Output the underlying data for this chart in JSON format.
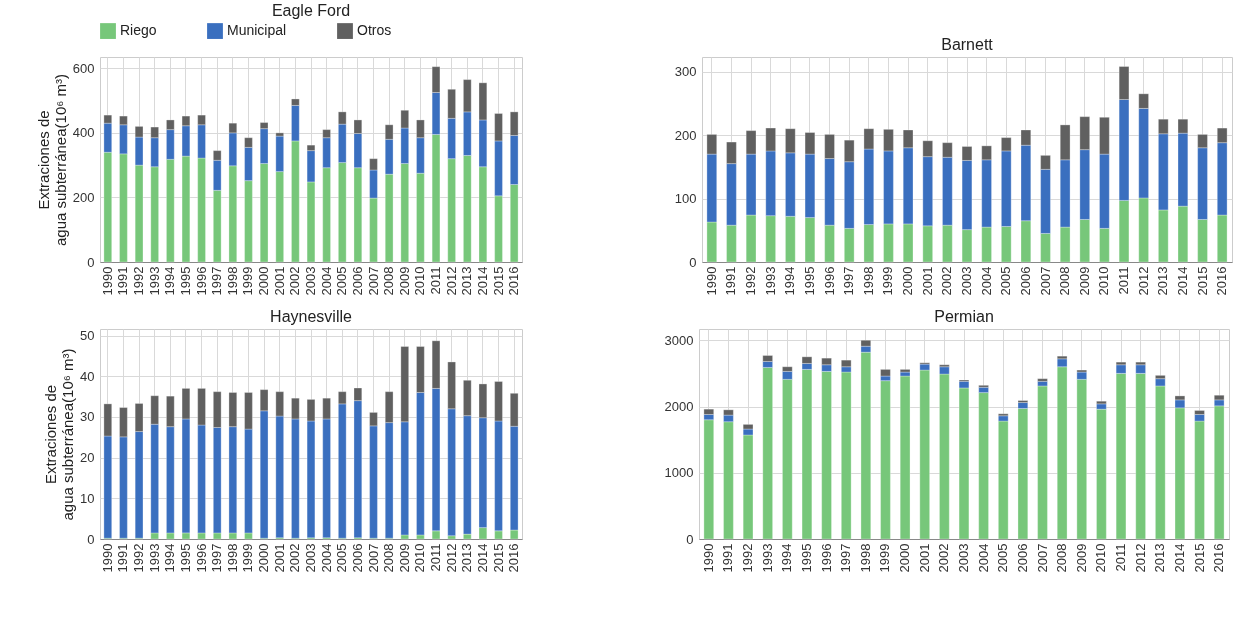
{
  "chart_data": [
    {
      "type": "bar",
      "title": "Eagle Ford",
      "ylabel": "Extraciones de\nagua subterránea(10⁶ m³)",
      "stacked": true,
      "grid": true,
      "legend": "top",
      "categories": [
        "1990",
        "1991",
        "1992",
        "1993",
        "1994",
        "1995",
        "1996",
        "1997",
        "1998",
        "1999",
        "2000",
        "2001",
        "2002",
        "2003",
        "2004",
        "2005",
        "2006",
        "2007",
        "2008",
        "2009",
        "2010",
        "2011",
        "2012",
        "2013",
        "2014",
        "2015",
        "2016"
      ],
      "ylim": [
        0,
        635
      ],
      "yticks": [
        0,
        200,
        400,
        600
      ],
      "series": [
        {
          "name": "Riego",
          "color": "#77c77a",
          "values": [
            340,
            335,
            300,
            295,
            318,
            328,
            322,
            222,
            298,
            252,
            305,
            280,
            375,
            248,
            292,
            308,
            292,
            198,
            272,
            305,
            275,
            395,
            320,
            330,
            295,
            205,
            240
          ]
        },
        {
          "name": "Municipal",
          "color": "#3a6fbf",
          "values": [
            90,
            90,
            87,
            90,
            92,
            94,
            103,
            93,
            102,
            103,
            108,
            110,
            110,
            97,
            93,
            119,
            106,
            87,
            108,
            110,
            110,
            130,
            125,
            135,
            145,
            170,
            152
          ]
        },
        {
          "name": "Otros",
          "color": "#606060",
          "values": [
            25,
            27,
            33,
            33,
            30,
            30,
            30,
            30,
            30,
            30,
            19,
            10,
            20,
            17,
            25,
            38,
            42,
            35,
            45,
            55,
            55,
            80,
            90,
            100,
            115,
            85,
            73
          ]
        }
      ]
    },
    {
      "type": "bar",
      "title": "Barnett",
      "stacked": true,
      "grid": true,
      "categories": [
        "1990",
        "1991",
        "1992",
        "1993",
        "1994",
        "1995",
        "1996",
        "1997",
        "1998",
        "1999",
        "2000",
        "2001",
        "2002",
        "2003",
        "2004",
        "2005",
        "2006",
        "2007",
        "2008",
        "2009",
        "2010",
        "2011",
        "2012",
        "2013",
        "2014",
        "2015",
        "2016"
      ],
      "ylim": [
        0,
        323
      ],
      "yticks": [
        0,
        100,
        200,
        300
      ],
      "series": [
        {
          "color": "#77c77a",
          "values": [
            63,
            58,
            74,
            73,
            72,
            70,
            58,
            53,
            59,
            60,
            60,
            57,
            58,
            51,
            55,
            56,
            65,
            45,
            55,
            67,
            53,
            97,
            101,
            82,
            88,
            67,
            74
          ]
        },
        {
          "color": "#3a6fbf",
          "values": [
            107,
            97,
            96,
            102,
            100,
            100,
            105,
            105,
            119,
            115,
            120,
            109,
            107,
            109,
            106,
            119,
            119,
            101,
            106,
            110,
            117,
            159,
            141,
            120,
            115,
            113,
            114
          ]
        },
        {
          "color": "#606060",
          "values": [
            31,
            34,
            37,
            36,
            38,
            34,
            38,
            34,
            32,
            34,
            28,
            25,
            23,
            22,
            22,
            21,
            24,
            22,
            55,
            52,
            58,
            52,
            23,
            23,
            22,
            21,
            23
          ]
        }
      ]
    },
    {
      "type": "bar",
      "title": "Haynesville",
      "ylabel": "Extraciones de\nagua subterránea(10⁶ m³)",
      "stacked": true,
      "grid": true,
      "categories": [
        "1990",
        "1991",
        "1992",
        "1993",
        "1994",
        "1995",
        "1996",
        "1997",
        "1998",
        "1999",
        "2000",
        "2001",
        "2002",
        "2003",
        "2004",
        "2005",
        "2006",
        "2007",
        "2008",
        "2009",
        "2010",
        "2011",
        "2012",
        "2013",
        "2014",
        "2015",
        "2016"
      ],
      "ylim": [
        0,
        51.6
      ],
      "yticks": [
        0,
        10,
        20,
        30,
        40,
        50
      ],
      "series": [
        {
          "color": "#77c77a",
          "values": [
            0.2,
            0.2,
            0.2,
            1.5,
            1.5,
            1.5,
            1.5,
            1.5,
            1.5,
            1.5,
            0.2,
            0.3,
            0.2,
            0.3,
            0.3,
            0.2,
            0.3,
            0.2,
            0.2,
            1,
            1,
            2,
            0.8,
            1.2,
            2.8,
            2,
            2.2
          ]
        },
        {
          "color": "#3a6fbf",
          "values": [
            25.1,
            24.9,
            26.2,
            26.7,
            26.1,
            28,
            26.5,
            25.9,
            26.1,
            25.5,
            31.3,
            29.9,
            29.3,
            28.7,
            29.2,
            33,
            33.7,
            27.6,
            28.4,
            27.8,
            35,
            35,
            31.2,
            29.1,
            27,
            27,
            25.5
          ]
        },
        {
          "color": "#606060",
          "values": [
            7.9,
            7.2,
            6.9,
            7,
            7.5,
            7.5,
            9,
            8.8,
            8.4,
            9,
            5.2,
            6,
            5.1,
            5.3,
            5.1,
            3,
            3.1,
            3.3,
            7.6,
            18.5,
            11.3,
            11.7,
            11.5,
            8.7,
            8.3,
            9.7,
            8.1
          ]
        }
      ]
    },
    {
      "type": "bar",
      "title": "Permian",
      "stacked": true,
      "grid": true,
      "categories": [
        "1990",
        "1991",
        "1992",
        "1993",
        "1994",
        "1995",
        "1996",
        "1997",
        "1998",
        "1999",
        "2000",
        "2001",
        "2002",
        "2003",
        "2004",
        "2005",
        "2006",
        "2007",
        "2008",
        "2009",
        "2010",
        "2011",
        "2012",
        "2013",
        "2014",
        "2015",
        "2016"
      ],
      "ylim": [
        0,
        3170
      ],
      "yticks": [
        0,
        1000,
        2000,
        3000
      ],
      "series": [
        {
          "color": "#77c77a",
          "values": [
            1800,
            1770,
            1570,
            2590,
            2410,
            2560,
            2530,
            2520,
            2820,
            2390,
            2460,
            2550,
            2490,
            2280,
            2210,
            1780,
            1970,
            2310,
            2600,
            2410,
            1960,
            2500,
            2500,
            2310,
            1980,
            1780,
            2010
          ]
        },
        {
          "color": "#3a6fbf",
          "values": [
            80,
            100,
            90,
            90,
            120,
            90,
            100,
            80,
            90,
            70,
            60,
            90,
            110,
            100,
            80,
            80,
            90,
            70,
            120,
            110,
            80,
            130,
            130,
            110,
            120,
            100,
            90
          ]
        },
        {
          "color": "#606060",
          "values": [
            80,
            80,
            70,
            90,
            70,
            100,
            100,
            100,
            90,
            100,
            40,
            20,
            30,
            20,
            30,
            30,
            30,
            40,
            40,
            30,
            40,
            40,
            40,
            50,
            60,
            60,
            70
          ]
        }
      ]
    }
  ]
}
